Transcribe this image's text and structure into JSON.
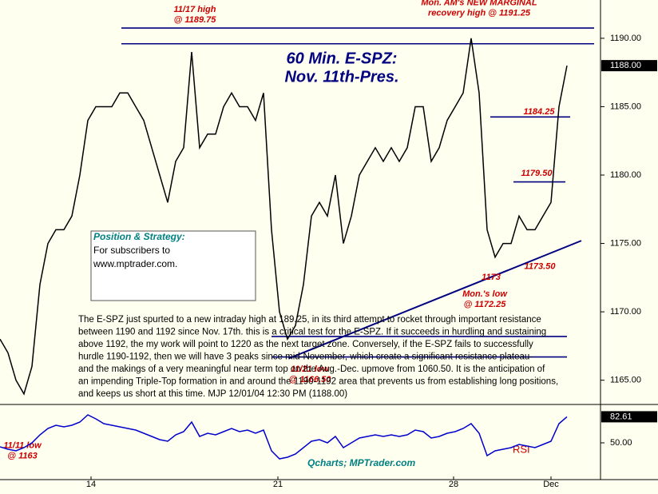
{
  "chart_data": [
    {
      "type": "line",
      "title": "60 Min. E-SPZ:",
      "subtitle": "Nov. 11th-Pres.",
      "x": [
        0,
        1,
        2,
        3,
        4,
        5,
        6,
        7,
        8,
        9,
        10,
        11,
        12,
        13,
        14,
        15,
        16,
        17,
        18,
        19,
        20,
        21,
        22,
        23,
        24,
        25,
        26,
        27,
        28,
        29,
        30,
        31,
        32,
        33,
        34,
        35,
        36,
        37,
        38,
        39,
        40,
        41,
        42,
        43,
        44,
        45,
        46,
        47,
        48,
        49,
        50,
        51,
        52,
        53,
        54,
        55,
        56,
        57,
        58,
        59,
        60,
        61,
        62,
        63,
        64,
        65,
        66,
        67,
        68,
        69,
        70,
        71
      ],
      "series": [
        {
          "name": "E-SPZ",
          "color": "#000000",
          "values": [
            1168,
            1167,
            1165,
            1164,
            1166,
            1172,
            1175,
            1176,
            1176,
            1177,
            1180,
            1184,
            1185,
            1185,
            1185,
            1186,
            1186,
            1185,
            1184,
            1182,
            1180,
            1178,
            1181,
            1182,
            1189,
            1182,
            1183,
            1183,
            1185,
            1186,
            1185,
            1185,
            1184,
            1186,
            1176,
            1170,
            1168,
            1169,
            1172,
            1177,
            1178,
            1177,
            1180,
            1175,
            1177,
            1180,
            1181,
            1182,
            1181,
            1182,
            1181,
            1182,
            1185,
            1185,
            1181,
            1182,
            1184,
            1185,
            1186,
            1190,
            1186,
            1176,
            1174,
            1175,
            1175,
            1177,
            1176,
            1176,
            1177,
            1178,
            1185,
            1188
          ]
        }
      ],
      "xlim": [
        0,
        75.2
      ],
      "ylim": [
        1163.6,
        1192.8
      ],
      "yticks": [
        {
          "value": 1165,
          "label": "1165.00"
        },
        {
          "value": 1170,
          "label": "1170.00"
        },
        {
          "value": 1175,
          "label": "1175.00"
        },
        {
          "value": 1180,
          "label": "1180.00"
        },
        {
          "value": 1185,
          "label": "1185.00"
        },
        {
          "value": 1190,
          "label": "1190.00"
        }
      ],
      "last_value": {
        "value": 1188,
        "label": "1188.00"
      },
      "levels": [
        {
          "value": 1190.75,
          "from": 15.2,
          "to": 74.4
        },
        {
          "value": 1189.6,
          "from": 15.2,
          "to": 74.4
        },
        {
          "value": 1168.2,
          "from": 34,
          "to": 71
        },
        {
          "value": 1166.7,
          "from": 34,
          "to": 71
        },
        {
          "value": 1184.25,
          "from": 61.4,
          "to": 71.4
        },
        {
          "value": 1179.5,
          "from": 64.3,
          "to": 70.8
        }
      ],
      "trendline": {
        "from": [
          36.2,
          1166.6
        ],
        "to": [
          72.8,
          1175.2
        ]
      },
      "annotations": [
        {
          "lines": [
            "11/17 high",
            "@ 1189.75"
          ],
          "x": 24.4,
          "y": 1192.1
        },
        {
          "lines": [
            "Mon. AM's NEW MARGINAL",
            "recovery high @ 1191.25"
          ],
          "x": 60,
          "y": 1192.6
        },
        {
          "lines": [
            "1184.25"
          ],
          "x": 67.5,
          "y": 1184.6
        },
        {
          "lines": [
            "1179.50"
          ],
          "x": 67.2,
          "y": 1180.1
        },
        {
          "lines": [
            "1173.50"
          ],
          "x": 67.6,
          "y": 1173.3
        },
        {
          "lines": [
            "1173"
          ],
          "x": 61.5,
          "y": 1172.5
        },
        {
          "lines": [
            "Mon.'s low",
            "@ 1172.25"
          ],
          "x": 60.7,
          "y": 1171.3
        },
        {
          "lines": [
            "11/21 low",
            "@ 1166.50"
          ],
          "x": 38.8,
          "y": 1165.8
        },
        {
          "lines": [
            "11/11 low",
            "@ 1163"
          ],
          "x": 2.8,
          "y": 1160.2
        }
      ],
      "box": {
        "title": "Position & Strategy:",
        "lines": [
          "For subscribers to",
          "www.mptrader.com."
        ]
      },
      "commentary": [
        "The E-SPZ just spurted to a new intraday high at 189.25, in its third attempt to rocket through important resistance",
        "between 1190 and 1192 since Nov. 17th. this is a critical test for the E-SPZ. If it succeeds in hurdling and sustaining",
        "above 1192, the my work will point to 1220 as the next target zone. Conversely, if the E-SPZ fails to successfully",
        "hurdle 1190-1192, then we will have 3 peaks since mid-November, which create a significant resistance plateau-",
        "and the makings of a very meaningful near term top on the Aug.-Dec. upmove from 1060.50. It is the anticipation of",
        "an impending Triple-Top formation in and around the 1190-1192 area that prevents us from establishing long positions,",
        "and keeps us short at this time.  MJP 12/01/04  12:30 PM  (1188.00)"
      ]
    },
    {
      "type": "line",
      "label": "RSI",
      "credit": "Qcharts; MPTrader.com",
      "x": [
        0,
        1,
        2,
        3,
        4,
        5,
        6,
        7,
        8,
        9,
        10,
        11,
        12,
        13,
        14,
        15,
        16,
        17,
        18,
        19,
        20,
        21,
        22,
        23,
        24,
        25,
        26,
        27,
        28,
        29,
        30,
        31,
        32,
        33,
        34,
        35,
        36,
        37,
        38,
        39,
        40,
        41,
        42,
        43,
        44,
        45,
        46,
        47,
        48,
        49,
        50,
        51,
        52,
        53,
        54,
        55,
        56,
        57,
        58,
        59,
        60,
        61,
        62,
        63,
        64,
        65,
        66,
        67,
        68,
        69,
        70,
        71
      ],
      "series": [
        {
          "name": "RSI",
          "color": "#0000cc",
          "values": [
            45,
            42,
            40,
            44,
            50,
            60,
            68,
            72,
            70,
            72,
            76,
            85,
            80,
            74,
            72,
            70,
            68,
            66,
            62,
            58,
            54,
            52,
            60,
            64,
            76,
            58,
            62,
            60,
            64,
            68,
            64,
            66,
            62,
            66,
            40,
            30,
            32,
            36,
            44,
            52,
            54,
            50,
            58,
            44,
            50,
            56,
            58,
            60,
            58,
            60,
            58,
            60,
            66,
            64,
            56,
            58,
            62,
            64,
            68,
            74,
            62,
            34,
            40,
            42,
            44,
            48,
            46,
            44,
            48,
            52,
            74,
            82.61
          ]
        }
      ],
      "xlim": [
        0,
        75.2
      ],
      "ylim": [
        5,
        96
      ],
      "yticks": [
        {
          "value": 50,
          "label": "50.00"
        }
      ],
      "last_value": {
        "value": 82.61,
        "label": "82.61"
      },
      "xticks": [
        {
          "value": 11.4,
          "label": "14"
        },
        {
          "value": 34.8,
          "label": "21"
        },
        {
          "value": 56.8,
          "label": "28"
        },
        {
          "value": 69,
          "label": "Dec"
        }
      ]
    }
  ]
}
